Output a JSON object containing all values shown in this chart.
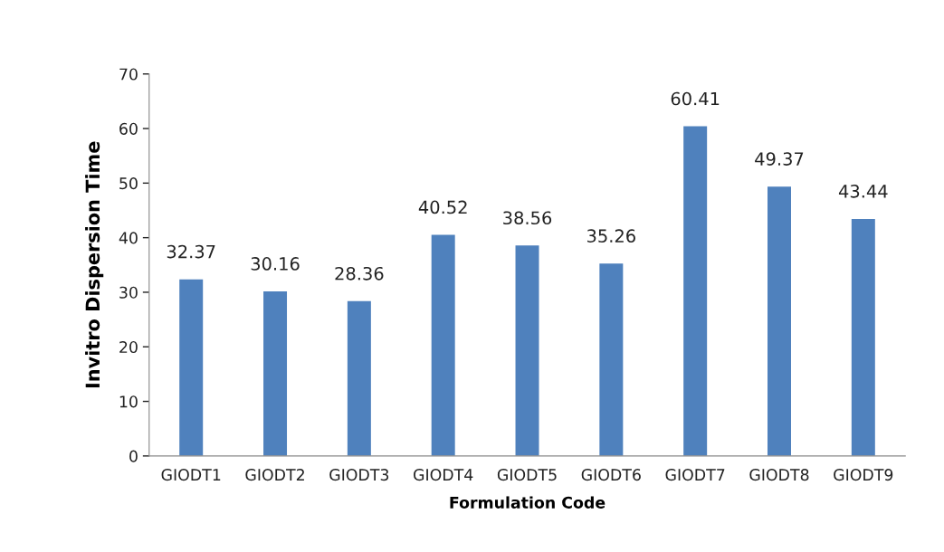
{
  "chart_data": {
    "type": "bar",
    "xlabel": "Formulation Code",
    "ylabel": "Invitro Dispersion Time",
    "categories": [
      "GIODT1",
      "GIODT2",
      "GIODT3",
      "GIODT4",
      "GIODT5",
      "GIODT6",
      "GIODT7",
      "GIODT8",
      "GIODT9"
    ],
    "values": [
      32.37,
      30.16,
      28.36,
      40.52,
      38.56,
      35.26,
      60.41,
      49.37,
      43.44
    ],
    "color": "#4f81bd",
    "ylim": [
      0,
      70
    ],
    "yticks": [
      0,
      10,
      20,
      30,
      40,
      50,
      60,
      70
    ],
    "data_labels": true,
    "grid": false,
    "legend": false
  }
}
